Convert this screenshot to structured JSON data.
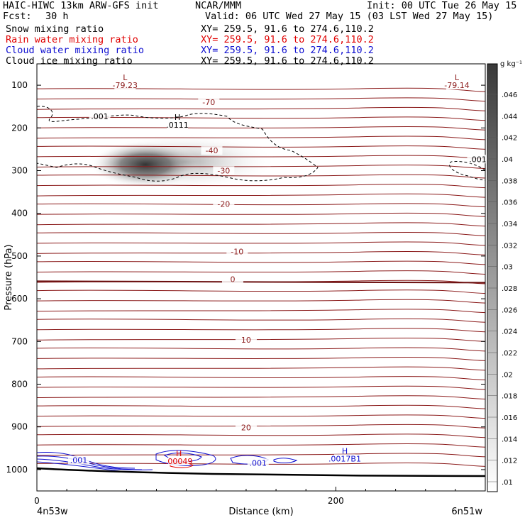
{
  "header": {
    "title_left": "HAIC-HIWC 13km ARW-GFS init",
    "org": "NCAR/MMM",
    "init": "Init: 00 UTC Tue 26 May 15",
    "fcst_label": "Fcst:",
    "fcst_value": "30 h",
    "valid": "Valid: 06 UTC Wed 27 May 15 (03 LST Wed 27 May 15)"
  },
  "fields": [
    {
      "name": "Snow mixing ratio",
      "xy": "XY= 259.5, 91.6 to 274.6,110.2",
      "color": "#000000"
    },
    {
      "name": "Rain water mixing ratio",
      "xy": "XY= 259.5, 91.6 to 274.6,110.2",
      "color": "#e00000"
    },
    {
      "name": "Cloud water mixing ratio",
      "xy": "XY= 259.5, 91.6 to 274.6,110.2",
      "color": "#1010d0"
    },
    {
      "name": "Cloud ice mixing ratio",
      "xy": "XY= 259.5, 91.6 to 274.6,110.2",
      "color": "#000000"
    }
  ],
  "chart_data": {
    "type": "cross-section",
    "xlabel": "Distance (km)",
    "ylabel": "Pressure (hPa)",
    "x_ticks": [
      0,
      200
    ],
    "x_range": [
      0,
      300
    ],
    "x_end_labels": [
      "4n53w",
      "6n51w"
    ],
    "y_ticks": [
      100,
      200,
      300,
      400,
      500,
      600,
      700,
      800,
      900,
      1000
    ],
    "y_range": [
      50,
      1050
    ],
    "colorbar": {
      "unit": "g kg⁻¹",
      "levels": [
        ".01",
        ".012",
        ".014",
        ".016",
        ".018",
        ".02",
        ".022",
        ".024",
        ".026",
        ".028",
        ".03",
        ".032",
        ".034",
        ".036",
        ".038",
        ".04",
        ".042",
        ".044",
        ".046"
      ]
    },
    "temperature_contours": {
      "color": "#8b1a1a",
      "labels": [
        {
          "value": "-70",
          "x": 115,
          "p": 145
        },
        {
          "value": "-40",
          "x": 117,
          "p": 258
        },
        {
          "value": "-30",
          "x": 125,
          "p": 305
        },
        {
          "value": "-20",
          "x": 125,
          "p": 383
        },
        {
          "value": "-10",
          "x": 134,
          "p": 494
        },
        {
          "value": "0",
          "x": 131,
          "p": 559
        },
        {
          "value": "10",
          "x": 140,
          "p": 701
        },
        {
          "value": "20",
          "x": 140,
          "p": 906
        }
      ],
      "lows": [
        {
          "marker": "L",
          "value": "-79.23",
          "x": 59,
          "p": 105
        },
        {
          "marker": "L",
          "value": "-79.14",
          "x": 281,
          "p": 105
        }
      ]
    },
    "cloud_ice_labels": [
      {
        "value": ".001",
        "x": 42,
        "p": 178
      },
      {
        "value": ".001",
        "x": 295,
        "p": 278
      },
      {
        "marker": "H",
        "value": ".0111",
        "x": 94,
        "p": 198
      }
    ],
    "cloud_water_labels": [
      {
        "value": ".001",
        "x": 28,
        "p": 983
      },
      {
        "value": ".001",
        "x": 148,
        "p": 989
      },
      {
        "marker": "H",
        "value": ".0017B1",
        "x": 206,
        "p": 979
      }
    ],
    "rain_labels": [
      {
        "marker": "H",
        "value": ".00049",
        "x": 95,
        "p": 985
      }
    ]
  }
}
